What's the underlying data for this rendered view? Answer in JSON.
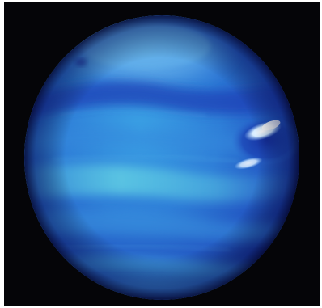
{
  "image": {
    "subject": "planet",
    "colors": {
      "background": "#050508",
      "frame": "#ffffff",
      "planet_deep": "#1a2fa8",
      "planet_mid": "#2d6fd6",
      "planet_light": "#45a3e6",
      "band_cyan": "#5fd0e0",
      "polar_cap": "#5aa8e8",
      "dark_band": "#1e3fb8",
      "storm_white": "#e8f4ff"
    }
  }
}
